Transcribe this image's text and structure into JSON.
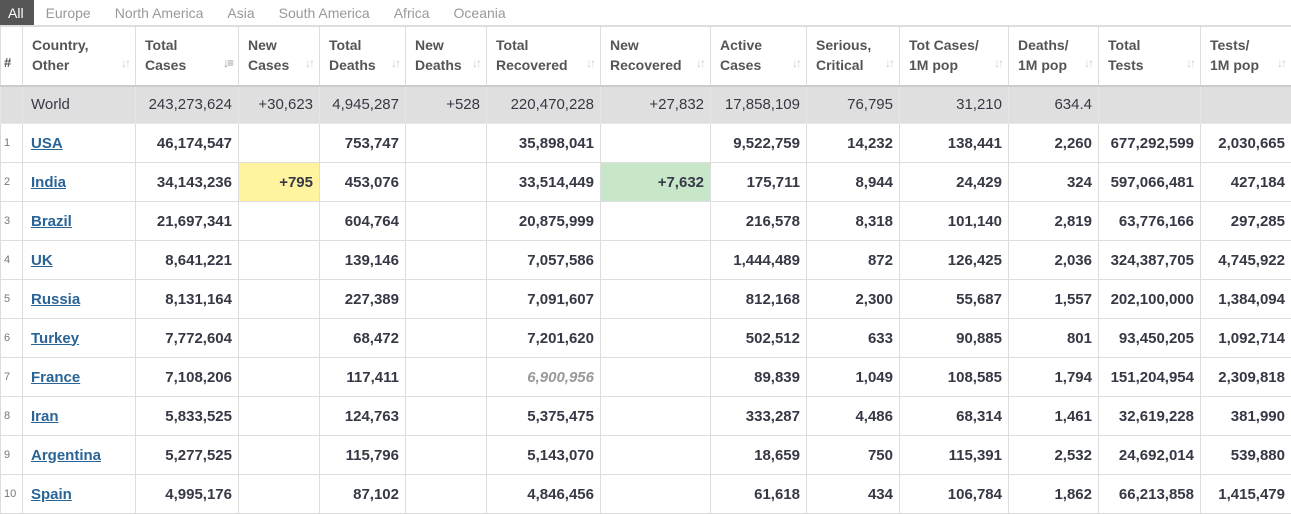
{
  "tabs": [
    "All",
    "Europe",
    "North America",
    "Asia",
    "South America",
    "Africa",
    "Oceania"
  ],
  "columns": [
    {
      "l1": "#",
      "l2": ""
    },
    {
      "l1": "Country,",
      "l2": "Other"
    },
    {
      "l1": "Total",
      "l2": "Cases"
    },
    {
      "l1": "New",
      "l2": "Cases"
    },
    {
      "l1": "Total",
      "l2": "Deaths"
    },
    {
      "l1": "New",
      "l2": "Deaths"
    },
    {
      "l1": "Total",
      "l2": "Recovered"
    },
    {
      "l1": "New",
      "l2": "Recovered"
    },
    {
      "l1": "Active",
      "l2": "Cases"
    },
    {
      "l1": "Serious,",
      "l2": "Critical"
    },
    {
      "l1": "Tot Cases/",
      "l2": "1M pop"
    },
    {
      "l1": "Deaths/",
      "l2": "1M pop"
    },
    {
      "l1": "Total",
      "l2": "Tests"
    },
    {
      "l1": "Tests/",
      "l2": "1M pop"
    }
  ],
  "world": {
    "name": "World",
    "cells": [
      "243,273,624",
      "+30,623",
      "4,945,287",
      "+528",
      "220,470,228",
      "+27,832",
      "17,858,109",
      "76,795",
      "31,210",
      "634.4",
      "",
      ""
    ]
  },
  "rows": [
    {
      "num": "1",
      "name": "USA",
      "cells": [
        "46,174,547",
        "",
        "753,747",
        "",
        "35,898,041",
        "",
        "9,522,759",
        "14,232",
        "138,441",
        "2,260",
        "677,292,599",
        "2,030,665"
      ]
    },
    {
      "num": "2",
      "name": "India",
      "cells": [
        "34,143,236",
        "+795",
        "453,076",
        "",
        "33,514,449",
        "+7,632",
        "175,711",
        "8,944",
        "24,429",
        "324",
        "597,066,481",
        "427,184"
      ]
    },
    {
      "num": "3",
      "name": "Brazil",
      "cells": [
        "21,697,341",
        "",
        "604,764",
        "",
        "20,875,999",
        "",
        "216,578",
        "8,318",
        "101,140",
        "2,819",
        "63,776,166",
        "297,285"
      ]
    },
    {
      "num": "4",
      "name": "UK",
      "cells": [
        "8,641,221",
        "",
        "139,146",
        "",
        "7,057,586",
        "",
        "1,444,489",
        "872",
        "126,425",
        "2,036",
        "324,387,705",
        "4,745,922"
      ]
    },
    {
      "num": "5",
      "name": "Russia",
      "cells": [
        "8,131,164",
        "",
        "227,389",
        "",
        "7,091,607",
        "",
        "812,168",
        "2,300",
        "55,687",
        "1,557",
        "202,100,000",
        "1,384,094"
      ]
    },
    {
      "num": "6",
      "name": "Turkey",
      "cells": [
        "7,772,604",
        "",
        "68,472",
        "",
        "7,201,620",
        "",
        "502,512",
        "633",
        "90,885",
        "801",
        "93,450,205",
        "1,092,714"
      ]
    },
    {
      "num": "7",
      "name": "France",
      "cells": [
        "7,108,206",
        "",
        "117,411",
        "",
        "6,900,956",
        "",
        "89,839",
        "1,049",
        "108,585",
        "1,794",
        "151,204,954",
        "2,309,818"
      ]
    },
    {
      "num": "8",
      "name": "Iran",
      "cells": [
        "5,833,525",
        "",
        "124,763",
        "",
        "5,375,475",
        "",
        "333,287",
        "4,486",
        "68,314",
        "1,461",
        "32,619,228",
        "381,990"
      ]
    },
    {
      "num": "9",
      "name": "Argentina",
      "cells": [
        "5,277,525",
        "",
        "115,796",
        "",
        "5,143,070",
        "",
        "18,659",
        "750",
        "115,391",
        "2,532",
        "24,692,014",
        "539,880"
      ]
    },
    {
      "num": "10",
      "name": "Spain",
      "cells": [
        "4,995,176",
        "",
        "87,102",
        "",
        "4,846,456",
        "",
        "61,618",
        "434",
        "106,784",
        "1,862",
        "66,213,858",
        "1,415,479"
      ]
    }
  ],
  "sort_icons": {
    "inactive": "sort-updown-icon",
    "active": "sort-descending-icon"
  },
  "colors": {
    "new_cases_bg": "#fff3a0",
    "new_recovered_bg": "#c8e6c9",
    "link": "#2a6496",
    "world_bg": "#dfdfdf",
    "active_tab_bg": "#555555"
  }
}
